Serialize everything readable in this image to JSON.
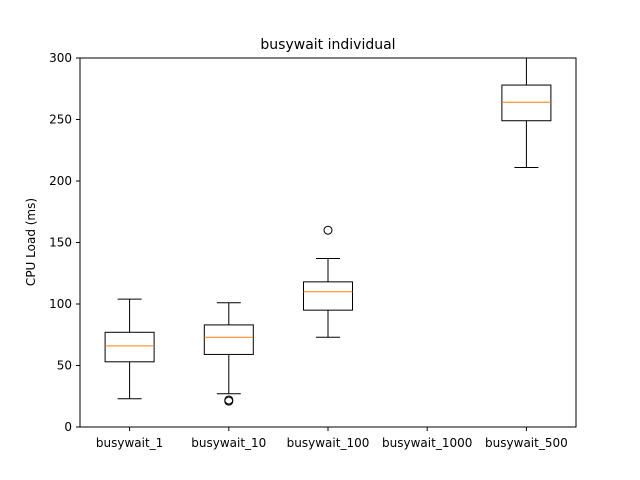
{
  "chart_data": {
    "type": "box",
    "title": "busywait individual",
    "xlabel": "",
    "ylabel": "CPU Load (ms)",
    "ylim": [
      0,
      300
    ],
    "yticks": [
      0,
      50,
      100,
      150,
      200,
      250,
      300
    ],
    "grid": false,
    "categories": [
      "busywait_1",
      "busywait_10",
      "busywait_100",
      "busywait_1000",
      "busywait_500"
    ],
    "boxes": [
      {
        "category": "busywait_1",
        "whisker_low": 23,
        "q1": 53,
        "median": 66,
        "q3": 77,
        "whisker_high": 104,
        "outliers": []
      },
      {
        "category": "busywait_10",
        "whisker_low": 27,
        "q1": 59,
        "median": 73,
        "q3": 83,
        "whisker_high": 101,
        "outliers": [
          21,
          22
        ]
      },
      {
        "category": "busywait_100",
        "whisker_low": 73,
        "q1": 95,
        "median": 110,
        "q3": 118,
        "whisker_high": 137,
        "outliers": [
          160
        ]
      },
      {
        "category": "busywait_1000",
        "empty": true
      },
      {
        "category": "busywait_500",
        "whisker_low": 211,
        "q1": 249,
        "median": 264,
        "q3": 278,
        "whisker_high": 300,
        "outliers": []
      }
    ],
    "colors": {
      "box": "#000000",
      "median": "#ff7f0e",
      "outlier": "#000000"
    }
  }
}
